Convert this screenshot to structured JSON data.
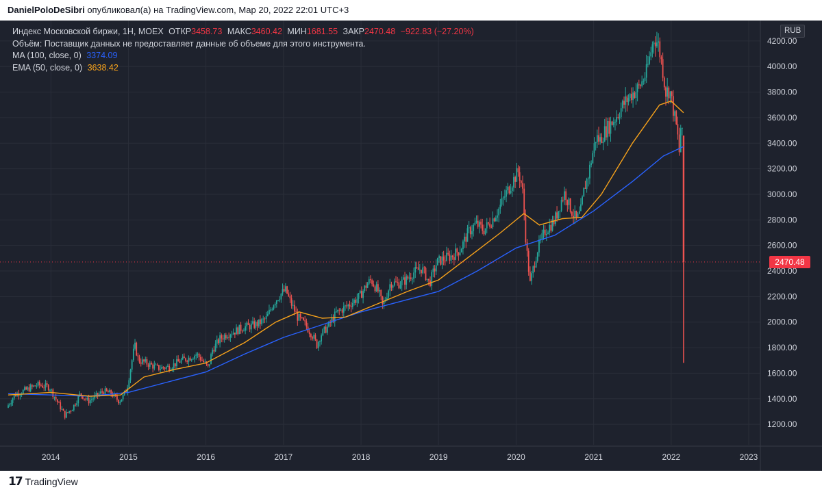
{
  "header": {
    "author": "DanielPoloDeSibri",
    "published": "опубликовал(а) на TradingView.com, Мар 20, 2022 22:01 UTC+3"
  },
  "legend": {
    "symbol": "Индекс Московской биржи, 1Н, MOEX",
    "open_label": "ОТКР",
    "open_value": "3458.73",
    "high_label": "МАКС",
    "high_value": "3460.42",
    "low_label": "МИН",
    "low_value": "1681.55",
    "close_label": "ЗАКР",
    "close_value": "2470.48",
    "change": "−922.83 (−27.20%)",
    "volume_note": "Объём: Поставщик данных не предоставляет данные об объеме для этого инструмента.",
    "ma_label": "MA (100, close, 0)",
    "ma_value": "3374.09",
    "ema_label": "EMA (50, close, 0)",
    "ema_value": "3638.42"
  },
  "currency": "RUB",
  "price_tag": "2470.48",
  "footer": {
    "logo_mark": "17",
    "logo_text": "TradingView"
  },
  "colors": {
    "background": "#1e222d",
    "grid": "#2a2e39",
    "up": "#26a69a",
    "down": "#ef5350",
    "ma": "#2962ff",
    "ema": "#f7a21b",
    "last_price": "#f23645"
  },
  "chart_data": {
    "type": "candlestick",
    "timeframe": "1W",
    "x_ticks": [
      "2014",
      "2015",
      "2016",
      "2017",
      "2018",
      "2019",
      "2020",
      "2021",
      "2022",
      "2023"
    ],
    "y_ticks": [
      "1200.00",
      "1400.00",
      "1600.00",
      "1800.00",
      "2000.00",
      "2200.00",
      "2400.00",
      "2600.00",
      "2800.00",
      "3000.00",
      "3200.00",
      "3400.00",
      "3600.00",
      "3800.00",
      "4000.00",
      "4200.00"
    ],
    "y_range": [
      1040,
      4360
    ],
    "x_range": [
      2013.45,
      2023.15
    ],
    "last_price": 2470.48,
    "ohlc_last": {
      "open": 3458.73,
      "high": 3460.42,
      "low": 1681.55,
      "close": 2470.48
    },
    "price_path": [
      [
        2013.45,
        1330
      ],
      [
        2013.55,
        1430
      ],
      [
        2013.7,
        1470
      ],
      [
        2013.85,
        1510
      ],
      [
        2014.0,
        1490
      ],
      [
        2014.1,
        1380
      ],
      [
        2014.2,
        1270
      ],
      [
        2014.3,
        1330
      ],
      [
        2014.4,
        1440
      ],
      [
        2014.5,
        1380
      ],
      [
        2014.6,
        1420
      ],
      [
        2014.7,
        1460
      ],
      [
        2014.8,
        1440
      ],
      [
        2014.9,
        1380
      ],
      [
        2014.95,
        1420
      ],
      [
        2015.0,
        1480
      ],
      [
        2015.05,
        1650
      ],
      [
        2015.1,
        1820
      ],
      [
        2015.15,
        1700
      ],
      [
        2015.25,
        1680
      ],
      [
        2015.4,
        1640
      ],
      [
        2015.55,
        1650
      ],
      [
        2015.7,
        1700
      ],
      [
        2015.8,
        1720
      ],
      [
        2015.9,
        1750
      ],
      [
        2016.0,
        1680
      ],
      [
        2016.05,
        1640
      ],
      [
        2016.1,
        1780
      ],
      [
        2016.2,
        1870
      ],
      [
        2016.3,
        1910
      ],
      [
        2016.4,
        1930
      ],
      [
        2016.5,
        1960
      ],
      [
        2016.6,
        1970
      ],
      [
        2016.7,
        1990
      ],
      [
        2016.8,
        2030
      ],
      [
        2016.9,
        2160
      ],
      [
        2017.0,
        2230
      ],
      [
        2017.05,
        2250
      ],
      [
        2017.1,
        2170
      ],
      [
        2017.2,
        2040
      ],
      [
        2017.3,
        1980
      ],
      [
        2017.4,
        1890
      ],
      [
        2017.45,
        1820
      ],
      [
        2017.5,
        1900
      ],
      [
        2017.6,
        1970
      ],
      [
        2017.7,
        2070
      ],
      [
        2017.8,
        2110
      ],
      [
        2017.9,
        2150
      ],
      [
        2018.0,
        2200
      ],
      [
        2018.1,
        2300
      ],
      [
        2018.15,
        2330
      ],
      [
        2018.25,
        2230
      ],
      [
        2018.3,
        2120
      ],
      [
        2018.4,
        2310
      ],
      [
        2018.5,
        2300
      ],
      [
        2018.6,
        2330
      ],
      [
        2018.7,
        2390
      ],
      [
        2018.8,
        2420
      ],
      [
        2018.85,
        2370
      ],
      [
        2018.9,
        2300
      ],
      [
        2019.0,
        2470
      ],
      [
        2019.1,
        2500
      ],
      [
        2019.2,
        2520
      ],
      [
        2019.3,
        2570
      ],
      [
        2019.4,
        2700
      ],
      [
        2019.5,
        2770
      ],
      [
        2019.6,
        2720
      ],
      [
        2019.7,
        2790
      ],
      [
        2019.8,
        2890
      ],
      [
        2019.9,
        3020
      ],
      [
        2020.0,
        3130
      ],
      [
        2020.05,
        3180
      ],
      [
        2020.1,
        3050
      ],
      [
        2020.15,
        2600
      ],
      [
        2020.2,
        2300
      ],
      [
        2020.25,
        2450
      ],
      [
        2020.3,
        2580
      ],
      [
        2020.4,
        2720
      ],
      [
        2020.5,
        2780
      ],
      [
        2020.55,
        2850
      ],
      [
        2020.6,
        2950
      ],
      [
        2020.65,
        3020
      ],
      [
        2020.7,
        2920
      ],
      [
        2020.75,
        2850
      ],
      [
        2020.8,
        2800
      ],
      [
        2020.85,
        2860
      ],
      [
        2020.9,
        3050
      ],
      [
        2020.95,
        3150
      ],
      [
        2021.0,
        3300
      ],
      [
        2021.05,
        3450
      ],
      [
        2021.1,
        3420
      ],
      [
        2021.15,
        3480
      ],
      [
        2021.2,
        3520
      ],
      [
        2021.3,
        3600
      ],
      [
        2021.4,
        3700
      ],
      [
        2021.5,
        3780
      ],
      [
        2021.6,
        3830
      ],
      [
        2021.7,
        3950
      ],
      [
        2021.75,
        4100
      ],
      [
        2021.8,
        4230
      ],
      [
        2021.85,
        4180
      ],
      [
        2021.9,
        4020
      ],
      [
        2021.95,
        3800
      ],
      [
        2022.0,
        3820
      ],
      [
        2022.05,
        3650
      ],
      [
        2022.1,
        3480
      ],
      [
        2022.12,
        3300
      ],
      [
        2022.15,
        3600
      ],
      [
        2022.16,
        3460
      ]
    ],
    "series": [
      {
        "name": "MA (100, close, 0)",
        "color": "#2962ff",
        "points": [
          [
            2013.45,
            1440
          ],
          [
            2014.0,
            1430
          ],
          [
            2014.5,
            1420
          ],
          [
            2015.0,
            1450
          ],
          [
            2015.5,
            1530
          ],
          [
            2016.0,
            1610
          ],
          [
            2016.5,
            1750
          ],
          [
            2017.0,
            1880
          ],
          [
            2017.5,
            1980
          ],
          [
            2018.0,
            2080
          ],
          [
            2018.5,
            2160
          ],
          [
            2019.0,
            2240
          ],
          [
            2019.5,
            2400
          ],
          [
            2020.0,
            2580
          ],
          [
            2020.5,
            2680
          ],
          [
            2021.0,
            2870
          ],
          [
            2021.5,
            3100
          ],
          [
            2021.9,
            3300
          ],
          [
            2022.16,
            3374.09
          ]
        ]
      },
      {
        "name": "EMA (50, close, 0)",
        "color": "#f7a21b",
        "points": [
          [
            2013.45,
            1430
          ],
          [
            2014.0,
            1450
          ],
          [
            2014.5,
            1420
          ],
          [
            2014.9,
            1430
          ],
          [
            2015.2,
            1570
          ],
          [
            2015.6,
            1630
          ],
          [
            2016.0,
            1680
          ],
          [
            2016.5,
            1840
          ],
          [
            2016.9,
            2000
          ],
          [
            2017.2,
            2080
          ],
          [
            2017.5,
            2030
          ],
          [
            2017.8,
            2040
          ],
          [
            2018.2,
            2140
          ],
          [
            2018.6,
            2240
          ],
          [
            2019.0,
            2330
          ],
          [
            2019.5,
            2560
          ],
          [
            2019.8,
            2700
          ],
          [
            2020.1,
            2850
          ],
          [
            2020.3,
            2760
          ],
          [
            2020.6,
            2810
          ],
          [
            2020.85,
            2820
          ],
          [
            2021.1,
            3000
          ],
          [
            2021.5,
            3400
          ],
          [
            2021.85,
            3700
          ],
          [
            2022.0,
            3730
          ],
          [
            2022.16,
            3638.42
          ]
        ]
      }
    ]
  }
}
